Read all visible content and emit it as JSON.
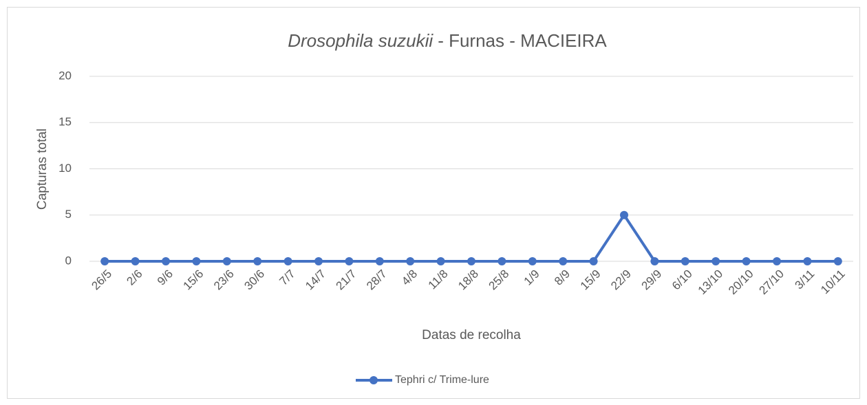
{
  "chart_data": {
    "type": "line",
    "title": [
      "Drosophila suzukii",
      "- Furnas - MACIEIRA"
    ],
    "x_label": "Datas de recolha",
    "y_label": "Capturas total",
    "categories": [
      "26/5",
      "2/6",
      "9/6",
      "15/6",
      "23/6",
      "30/6",
      "7/7",
      "14/7",
      "21/7",
      "28/7",
      "4/8",
      "11/8",
      "18/8",
      "25/8",
      "1/9",
      "8/9",
      "15/9",
      "22/9",
      "29/9",
      "6/10",
      "13/10",
      "20/10",
      "27/10",
      "3/11",
      "10/11"
    ],
    "series": [
      {
        "name": "Tephri c/ Trime-lure",
        "color": "#4472c4",
        "values": [
          0,
          0,
          0,
          0,
          0,
          0,
          0,
          0,
          0,
          0,
          0,
          0,
          0,
          0,
          0,
          0,
          0,
          5,
          0,
          0,
          0,
          0,
          0,
          0,
          0
        ]
      }
    ],
    "ylim": [
      0,
      20
    ],
    "yticks": [
      0,
      5,
      10,
      15,
      20
    ],
    "grid": true,
    "legend": "bottom"
  }
}
